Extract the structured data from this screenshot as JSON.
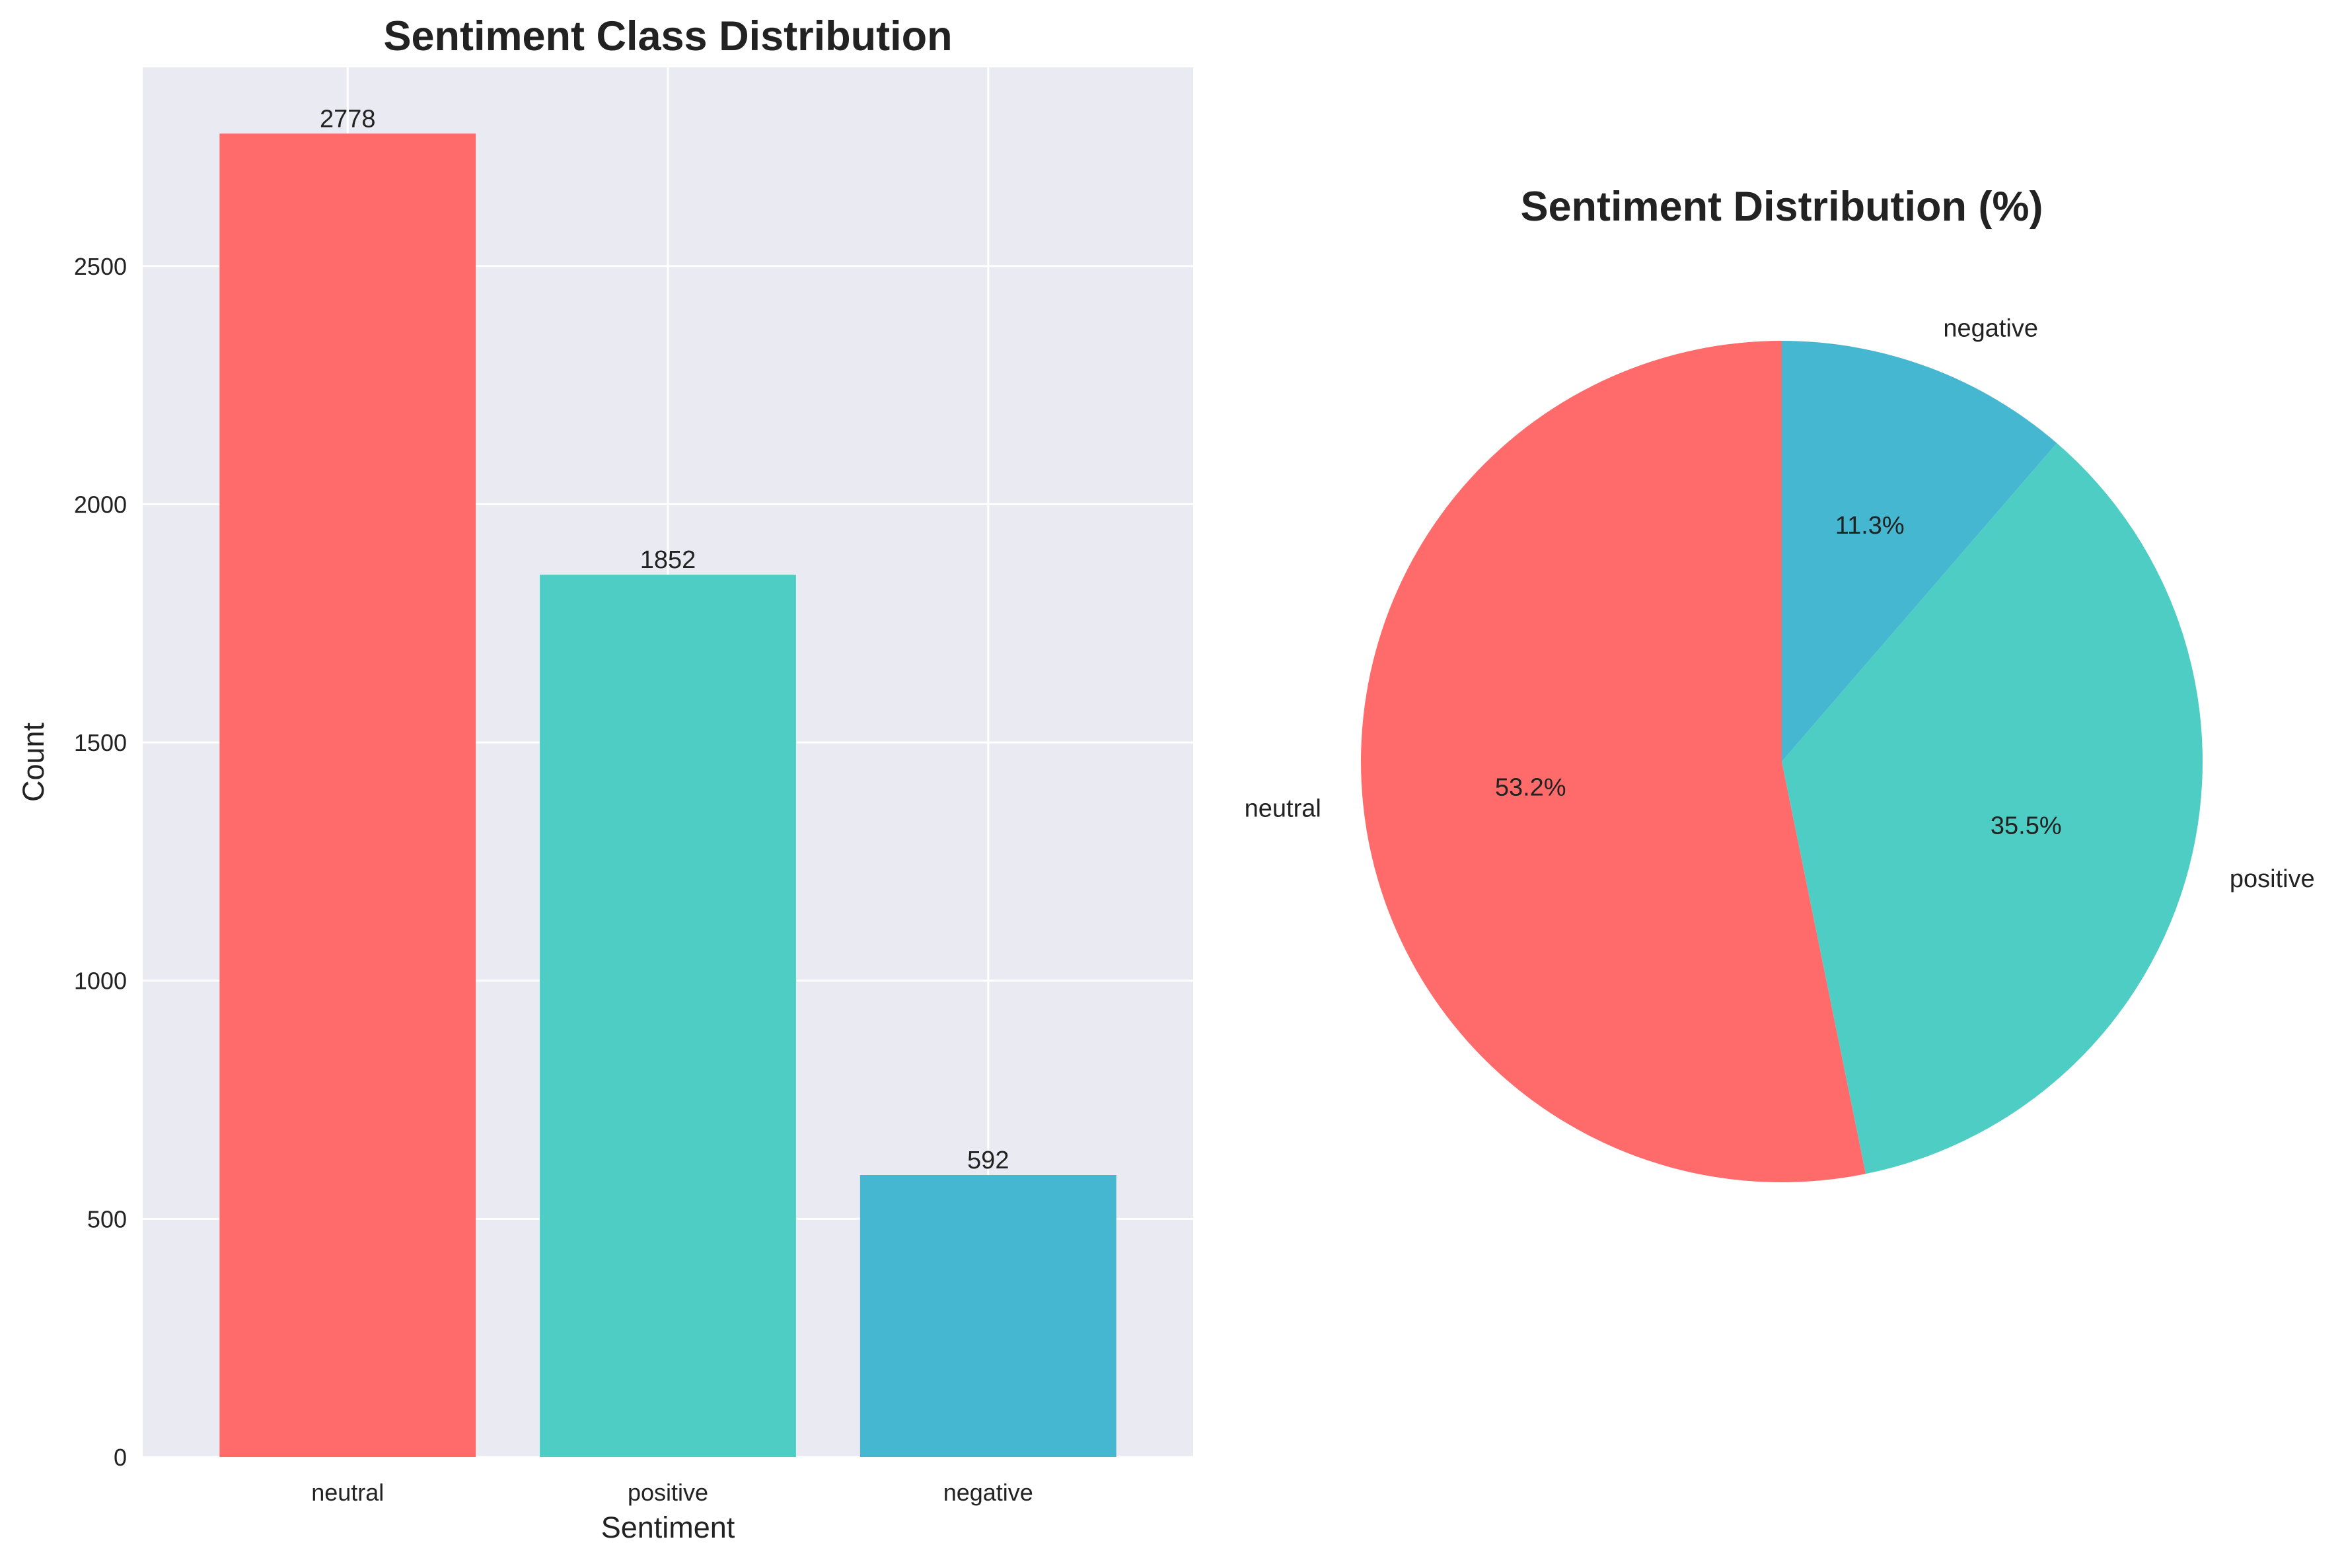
{
  "chart_data": [
    {
      "type": "bar",
      "title": "Sentiment Class Distribution",
      "xlabel": "Sentiment",
      "ylabel": "Count",
      "categories": [
        "neutral",
        "positive",
        "negative"
      ],
      "values": [
        2778,
        1852,
        592
      ],
      "value_labels": [
        "2778",
        "1852",
        "592"
      ],
      "colors": [
        "#FF6B6B",
        "#4ECDC4",
        "#45B7D1"
      ],
      "ylim": [
        0,
        2917
      ],
      "yticks": [
        0,
        500,
        1000,
        1500,
        2000,
        2500
      ],
      "grid": true,
      "background": "#EAEAF2"
    },
    {
      "type": "pie",
      "title": "Sentiment Distribution (%)",
      "categories": [
        "neutral",
        "positive",
        "negative"
      ],
      "values": [
        2778,
        1852,
        592
      ],
      "percent_labels": [
        "53.2%",
        "35.5%",
        "11.3%"
      ],
      "colors": [
        "#FF6B6B",
        "#4ECDC4",
        "#45B7D1"
      ],
      "start_angle_deg": 90,
      "direction": "counterclockwise"
    }
  ]
}
